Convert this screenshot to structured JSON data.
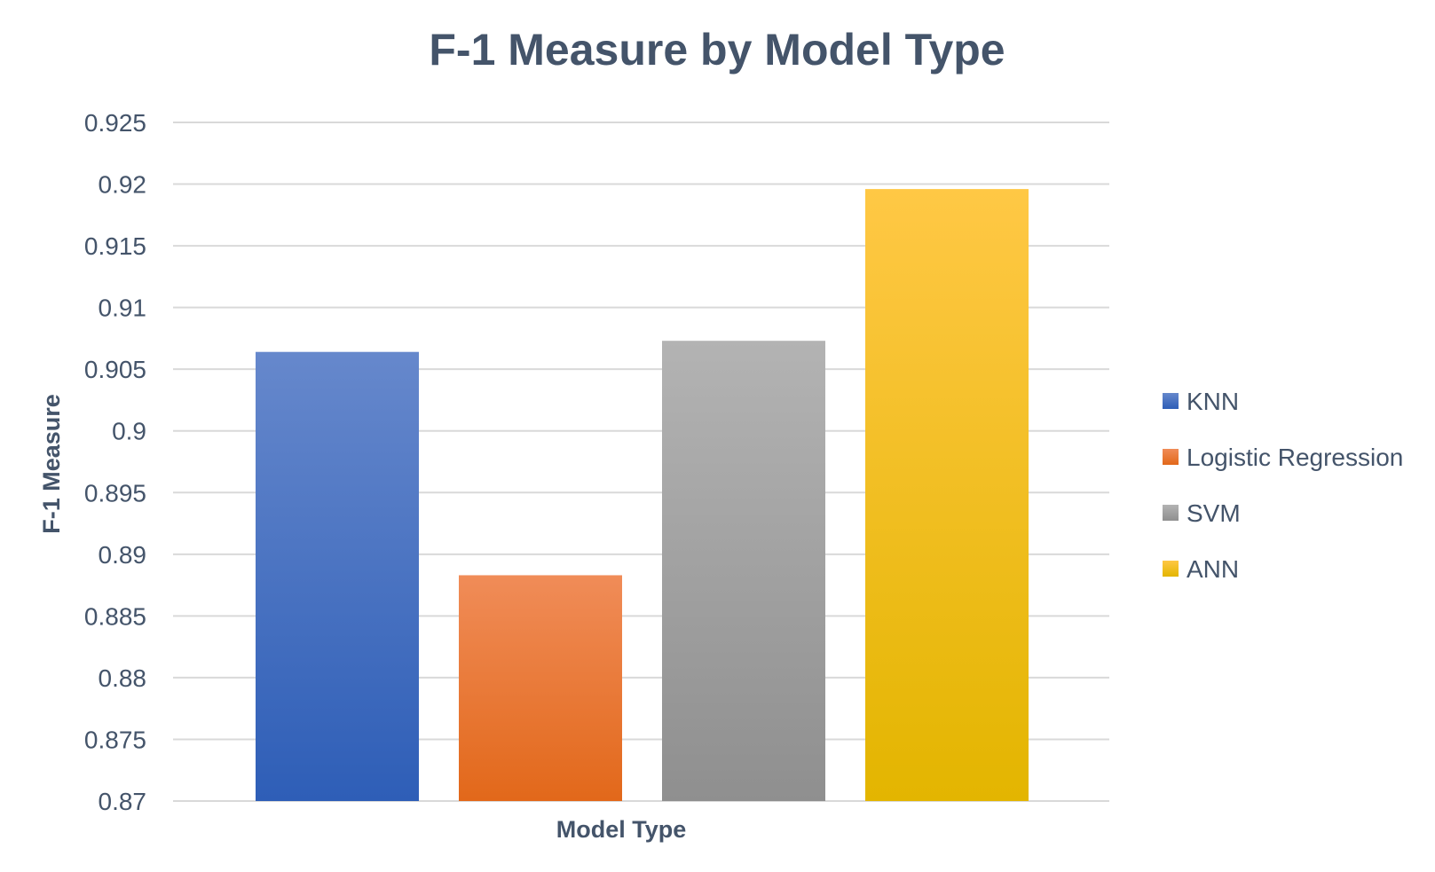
{
  "chart_data": {
    "type": "bar",
    "title": "F-1 Measure by Model Type",
    "xlabel": "Model Type",
    "ylabel": "F-1 Measure",
    "ylim": [
      0.87,
      0.925
    ],
    "yticks": [
      "0.925",
      "0.92",
      "0.915",
      "0.91",
      "0.905",
      "0.9",
      "0.895",
      "0.89",
      "0.885",
      "0.88",
      "0.875",
      "0.87"
    ],
    "grid": true,
    "legend_position": "right",
    "series": [
      {
        "name": "KNN",
        "value": 0.9064,
        "color_top": "#6688CC",
        "color_bottom": "#2E5EB7"
      },
      {
        "name": "Logistic Regression",
        "value": 0.8883,
        "color_top": "#F08C58",
        "color_bottom": "#E2681A"
      },
      {
        "name": "SVM",
        "value": 0.9073,
        "color_top": "#B3B3B3",
        "color_bottom": "#8F8F8F"
      },
      {
        "name": "ANN",
        "value": 0.9196,
        "color_top": "#FFC845",
        "color_bottom": "#E3B500"
      }
    ]
  }
}
